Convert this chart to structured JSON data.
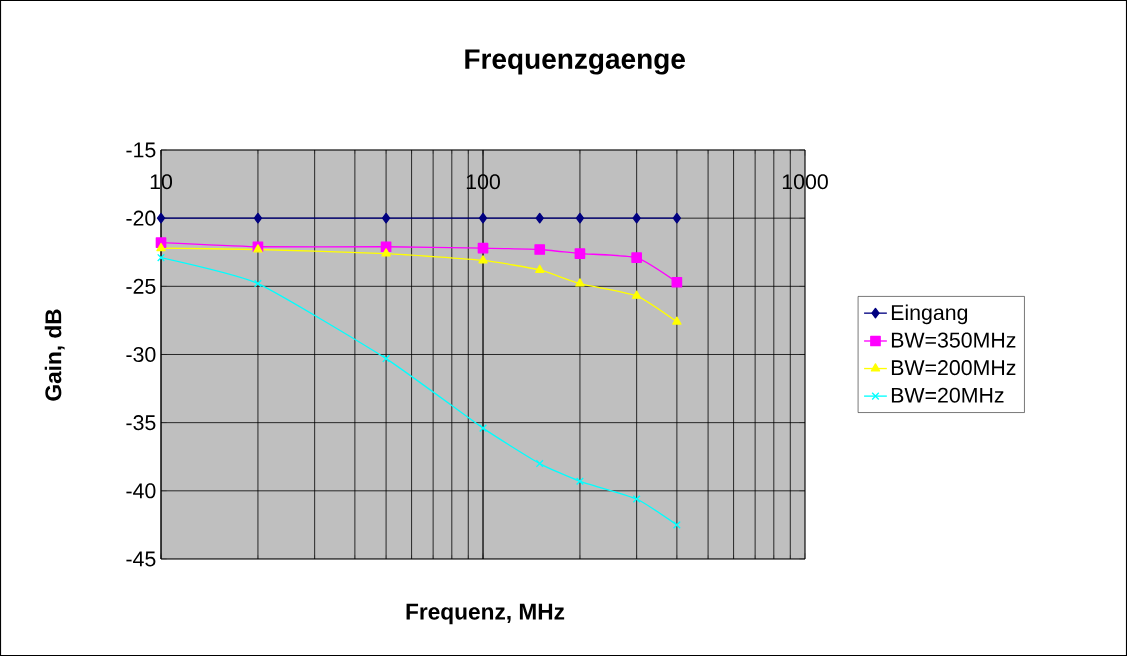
{
  "chart_data": {
    "type": "line",
    "title": "Frequenzgaenge",
    "xlabel": "Frequenz, MHz",
    "ylabel": "Gain, dB",
    "log": "x",
    "grid": true,
    "legend": "right",
    "line_style": "solid",
    "xlim": [
      10,
      1000
    ],
    "xticks": [
      10,
      100,
      1000
    ],
    "ylim": [
      -45,
      -15
    ],
    "yticks": [
      -45,
      -40,
      -35,
      -30,
      -25,
      -20,
      -15
    ],
    "x": [
      10,
      20,
      50,
      100,
      150,
      200,
      300,
      400
    ],
    "series": [
      {
        "name": "Eingang",
        "color": "#000080",
        "marker": "diamond",
        "values": [
          -20,
          -20,
          -20,
          -20,
          -20,
          -20,
          -20,
          -20
        ]
      },
      {
        "name": "BW=350MHz",
        "color": "#ff00ff",
        "marker": "square",
        "values": [
          -21.8,
          -22.1,
          -22.1,
          -22.2,
          -22.3,
          -22.6,
          -22.9,
          -24.7
        ]
      },
      {
        "name": "BW=200MHz",
        "color": "#ffff00",
        "marker": "triangle",
        "values": [
          -22.2,
          -22.3,
          -22.6,
          -23.1,
          -23.8,
          -24.8,
          -25.7,
          -27.6
        ]
      },
      {
        "name": "BW=20MHz",
        "color": "#00ffff",
        "marker": "cross",
        "values": [
          -22.9,
          -24.8,
          -30.3,
          -35.4,
          -38.0,
          -39.3,
          -40.6,
          -42.5
        ]
      }
    ]
  }
}
